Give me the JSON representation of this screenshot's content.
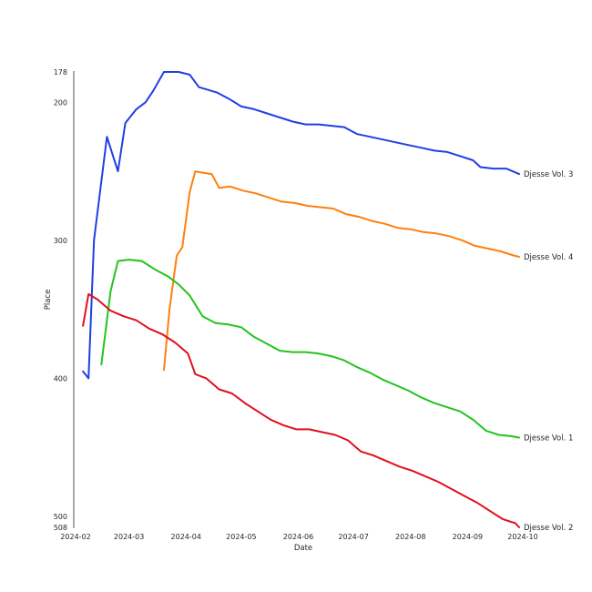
{
  "chart_data": {
    "type": "line",
    "title": "",
    "xlabel": "Date",
    "ylabel": "Place",
    "y_inverted": true,
    "ylim": [
      178,
      508
    ],
    "xlim": [
      "2024-01-31",
      "2024-10-01"
    ],
    "x_ticks": [
      "2024-02",
      "2024-03",
      "2024-04",
      "2024-05",
      "2024-06",
      "2024-07",
      "2024-08",
      "2024-09",
      "2024-10"
    ],
    "y_ticks": [
      178,
      200,
      300,
      400,
      500,
      508
    ],
    "grid": false,
    "series": [
      {
        "name": "Djesse Vol. 3",
        "color": "#1f3fe6",
        "points": [
          [
            "2024-02-05",
            395
          ],
          [
            "2024-02-08",
            400
          ],
          [
            "2024-02-11",
            300
          ],
          [
            "2024-02-18",
            225
          ],
          [
            "2024-02-24",
            250
          ],
          [
            "2024-02-28",
            215
          ],
          [
            "2024-03-05",
            205
          ],
          [
            "2024-03-10",
            200
          ],
          [
            "2024-03-14",
            192
          ],
          [
            "2024-03-20",
            178
          ],
          [
            "2024-03-28",
            178
          ],
          [
            "2024-04-03",
            180
          ],
          [
            "2024-04-08",
            189
          ],
          [
            "2024-04-18",
            193
          ],
          [
            "2024-04-25",
            198
          ],
          [
            "2024-05-01",
            203
          ],
          [
            "2024-05-08",
            205
          ],
          [
            "2024-05-15",
            208
          ],
          [
            "2024-05-22",
            211
          ],
          [
            "2024-05-29",
            214
          ],
          [
            "2024-06-05",
            216
          ],
          [
            "2024-06-12",
            216
          ],
          [
            "2024-06-19",
            217
          ],
          [
            "2024-06-26",
            218
          ],
          [
            "2024-07-03",
            223
          ],
          [
            "2024-07-10",
            225
          ],
          [
            "2024-07-17",
            227
          ],
          [
            "2024-07-24",
            229
          ],
          [
            "2024-07-31",
            231
          ],
          [
            "2024-08-07",
            233
          ],
          [
            "2024-08-14",
            235
          ],
          [
            "2024-08-21",
            236
          ],
          [
            "2024-08-28",
            239
          ],
          [
            "2024-09-04",
            242
          ],
          [
            "2024-09-08",
            247
          ],
          [
            "2024-09-15",
            248
          ],
          [
            "2024-09-22",
            248
          ],
          [
            "2024-09-29",
            252
          ]
        ]
      },
      {
        "name": "Djesse Vol. 4",
        "color": "#ff7f0e",
        "points": [
          [
            "2024-03-20",
            394
          ],
          [
            "2024-03-23",
            350
          ],
          [
            "2024-03-27",
            311
          ],
          [
            "2024-03-30",
            305
          ],
          [
            "2024-04-03",
            265
          ],
          [
            "2024-04-06",
            250
          ],
          [
            "2024-04-10",
            251
          ],
          [
            "2024-04-15",
            252
          ],
          [
            "2024-04-19",
            262
          ],
          [
            "2024-04-25",
            261
          ],
          [
            "2024-05-02",
            264
          ],
          [
            "2024-05-09",
            266
          ],
          [
            "2024-05-16",
            269
          ],
          [
            "2024-05-23",
            272
          ],
          [
            "2024-05-30",
            273
          ],
          [
            "2024-06-06",
            275
          ],
          [
            "2024-06-13",
            276
          ],
          [
            "2024-06-20",
            277
          ],
          [
            "2024-06-27",
            281
          ],
          [
            "2024-07-04",
            283
          ],
          [
            "2024-07-11",
            286
          ],
          [
            "2024-07-18",
            288
          ],
          [
            "2024-07-25",
            291
          ],
          [
            "2024-08-01",
            292
          ],
          [
            "2024-08-08",
            294
          ],
          [
            "2024-08-15",
            295
          ],
          [
            "2024-08-22",
            297
          ],
          [
            "2024-08-29",
            300
          ],
          [
            "2024-09-05",
            304
          ],
          [
            "2024-09-12",
            306
          ],
          [
            "2024-09-19",
            308
          ],
          [
            "2024-09-26",
            311
          ],
          [
            "2024-09-29",
            312
          ]
        ]
      },
      {
        "name": "Djesse Vol. 1",
        "color": "#22c41d",
        "points": [
          [
            "2024-02-15",
            390
          ],
          [
            "2024-02-20",
            337
          ],
          [
            "2024-02-24",
            315
          ],
          [
            "2024-03-01",
            314
          ],
          [
            "2024-03-08",
            315
          ],
          [
            "2024-03-15",
            321
          ],
          [
            "2024-03-22",
            326
          ],
          [
            "2024-03-28",
            332
          ],
          [
            "2024-04-03",
            340
          ],
          [
            "2024-04-10",
            355
          ],
          [
            "2024-04-17",
            360
          ],
          [
            "2024-04-24",
            361
          ],
          [
            "2024-05-01",
            363
          ],
          [
            "2024-05-08",
            370
          ],
          [
            "2024-05-15",
            375
          ],
          [
            "2024-05-22",
            380
          ],
          [
            "2024-05-29",
            381
          ],
          [
            "2024-06-05",
            381
          ],
          [
            "2024-06-12",
            382
          ],
          [
            "2024-06-19",
            384
          ],
          [
            "2024-06-26",
            387
          ],
          [
            "2024-07-03",
            392
          ],
          [
            "2024-07-10",
            396
          ],
          [
            "2024-07-17",
            401
          ],
          [
            "2024-07-24",
            405
          ],
          [
            "2024-07-31",
            409
          ],
          [
            "2024-08-07",
            414
          ],
          [
            "2024-08-14",
            418
          ],
          [
            "2024-08-21",
            421
          ],
          [
            "2024-08-28",
            424
          ],
          [
            "2024-09-04",
            430
          ],
          [
            "2024-09-11",
            438
          ],
          [
            "2024-09-18",
            441
          ],
          [
            "2024-09-25",
            442
          ],
          [
            "2024-09-29",
            443
          ]
        ]
      },
      {
        "name": "Djesse Vol. 2",
        "color": "#e0101d",
        "points": [
          [
            "2024-02-05",
            362
          ],
          [
            "2024-02-08",
            339
          ],
          [
            "2024-02-13",
            343
          ],
          [
            "2024-02-20",
            351
          ],
          [
            "2024-02-27",
            355
          ],
          [
            "2024-03-05",
            358
          ],
          [
            "2024-03-12",
            364
          ],
          [
            "2024-03-19",
            368
          ],
          [
            "2024-03-26",
            374
          ],
          [
            "2024-04-02",
            382
          ],
          [
            "2024-04-06",
            397
          ],
          [
            "2024-04-12",
            400
          ],
          [
            "2024-04-19",
            408
          ],
          [
            "2024-04-26",
            411
          ],
          [
            "2024-05-03",
            418
          ],
          [
            "2024-05-10",
            424
          ],
          [
            "2024-05-17",
            430
          ],
          [
            "2024-05-24",
            434
          ],
          [
            "2024-05-31",
            437
          ],
          [
            "2024-06-07",
            437
          ],
          [
            "2024-06-14",
            439
          ],
          [
            "2024-06-21",
            441
          ],
          [
            "2024-06-28",
            445
          ],
          [
            "2024-07-05",
            453
          ],
          [
            "2024-07-12",
            456
          ],
          [
            "2024-07-19",
            460
          ],
          [
            "2024-07-26",
            464
          ],
          [
            "2024-08-02",
            467
          ],
          [
            "2024-08-09",
            471
          ],
          [
            "2024-08-16",
            475
          ],
          [
            "2024-08-23",
            480
          ],
          [
            "2024-08-30",
            485
          ],
          [
            "2024-09-06",
            490
          ],
          [
            "2024-09-13",
            496
          ],
          [
            "2024-09-20",
            502
          ],
          [
            "2024-09-27",
            505
          ],
          [
            "2024-09-29",
            508
          ]
        ]
      }
    ]
  }
}
